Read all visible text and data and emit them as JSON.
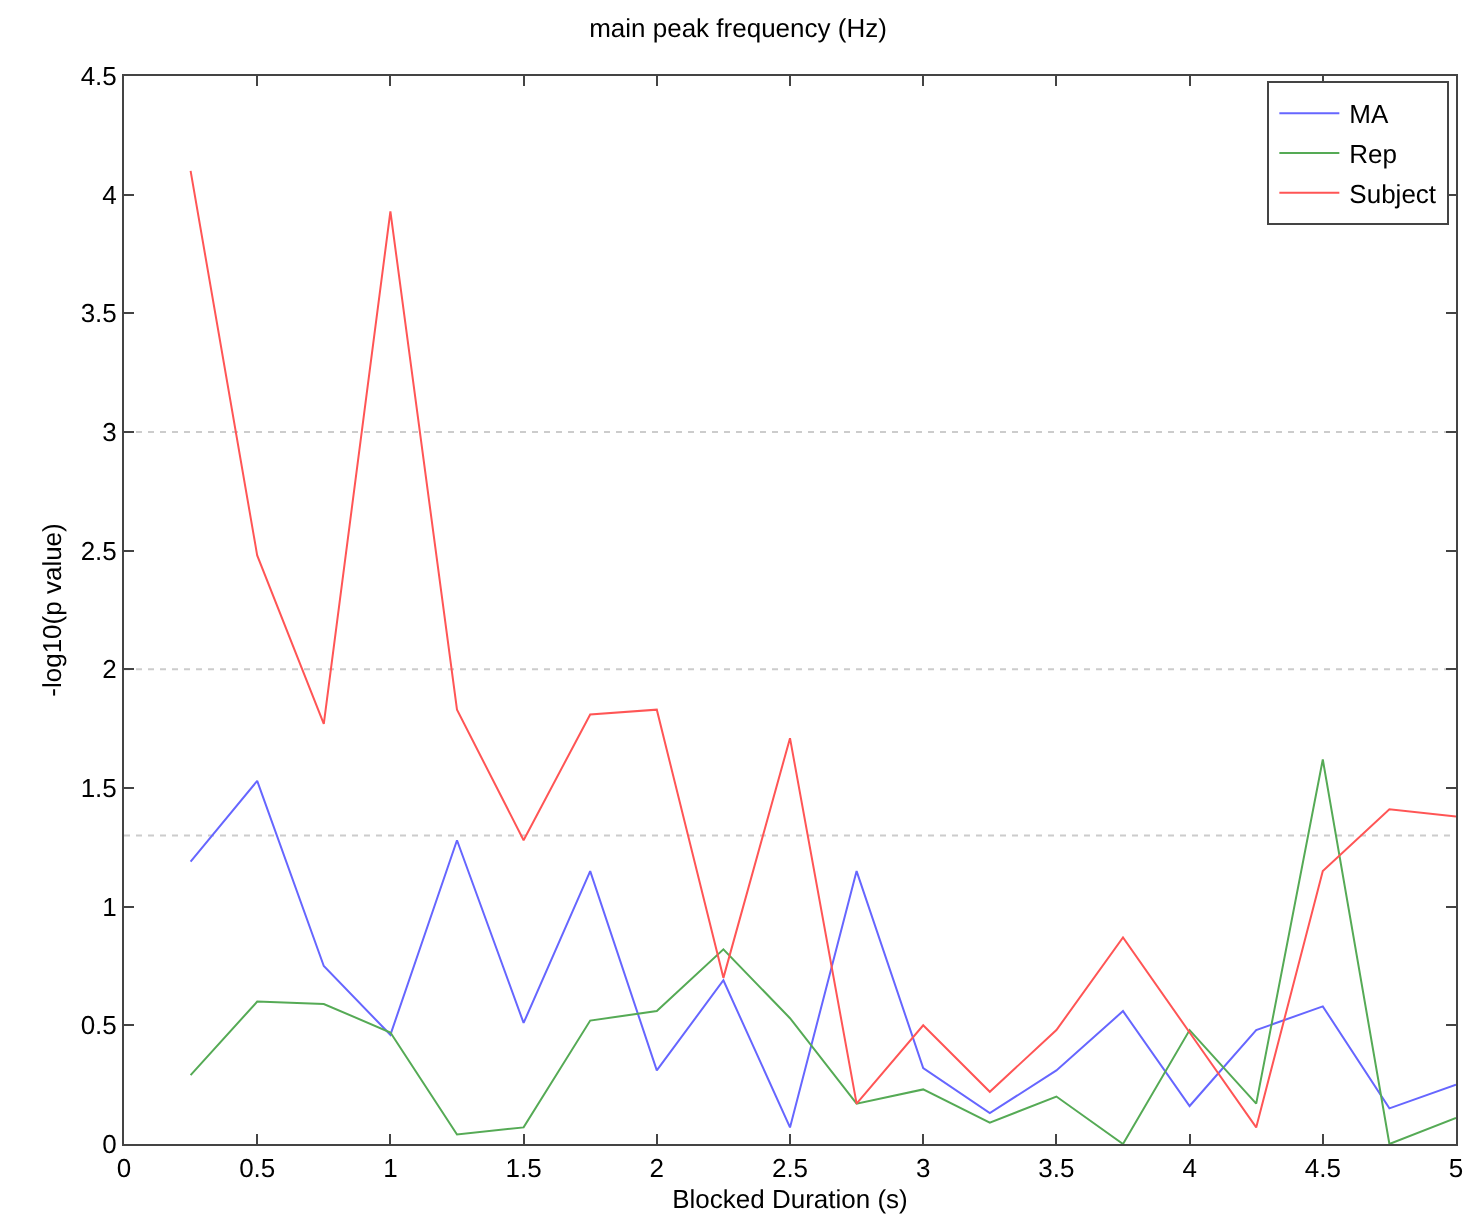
{
  "chart_data": {
    "type": "line",
    "title": "main peak frequency (Hz)",
    "xlabel": "Blocked Duration (s)",
    "ylabel": "-log10(p value)",
    "x": [
      0.25,
      0.5,
      0.75,
      1,
      1.25,
      1.5,
      1.75,
      2,
      2.25,
      2.5,
      2.75,
      3,
      3.25,
      3.5,
      3.75,
      4,
      4.25,
      4.5,
      4.75,
      5
    ],
    "series": [
      {
        "name": "MA",
        "color": "#6666ff",
        "values": [
          1.19,
          1.53,
          0.75,
          0.46,
          1.28,
          0.51,
          1.15,
          0.31,
          0.69,
          0.07,
          1.15,
          0.32,
          0.13,
          0.31,
          0.56,
          0.16,
          0.48,
          0.58,
          0.15,
          0.25
        ]
      },
      {
        "name": "Rep",
        "color": "#55aa55",
        "values": [
          0.29,
          0.6,
          0.59,
          0.47,
          0.04,
          0.07,
          0.52,
          0.56,
          0.82,
          0.53,
          0.17,
          0.23,
          0.09,
          0.2,
          0.0,
          0.48,
          0.17,
          1.62,
          0.0,
          0.11
        ]
      },
      {
        "name": "Subject",
        "color": "#ff5555",
        "values": [
          4.1,
          2.48,
          1.77,
          3.93,
          1.83,
          1.28,
          1.81,
          1.83,
          0.7,
          1.71,
          0.17,
          0.5,
          0.22,
          0.48,
          0.87,
          0.47,
          0.07,
          1.15,
          1.41,
          1.38
        ]
      }
    ],
    "xlim": [
      0,
      5
    ],
    "xticks": [
      0,
      0.5,
      1,
      1.5,
      2,
      2.5,
      3,
      3.5,
      4,
      4.5,
      5
    ],
    "ylim": [
      0,
      4.5
    ],
    "yticks": [
      0,
      0.5,
      1,
      1.5,
      2,
      2.5,
      3,
      3.5,
      4,
      4.5
    ],
    "ref_lines": [
      {
        "axis": "y",
        "value": 3,
        "color": "#cccccc",
        "line_style": "dotted"
      },
      {
        "axis": "y",
        "value": 2,
        "color": "#cccccc",
        "line_style": "dotted"
      },
      {
        "axis": "y",
        "value": 1.3,
        "color": "#cccccc",
        "line_style": "dotted"
      }
    ],
    "grid": false,
    "legend": "top right",
    "marker": "none",
    "line_style": "solid"
  }
}
